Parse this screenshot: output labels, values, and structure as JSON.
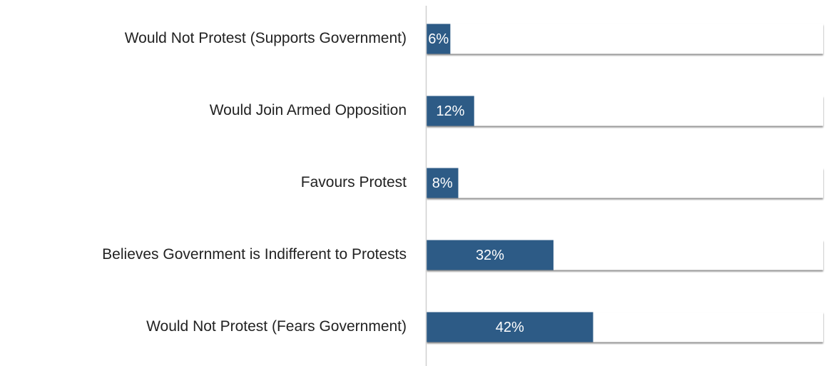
{
  "chart_data": {
    "type": "hbar",
    "categories": [
      "Would Not Protest (Supports Government)",
      "Would Join Armed Opposition",
      "Favours Protest",
      "Believes Government is Indifferent to Protests",
      "Would Not Protest (Fears Government)"
    ],
    "values": [
      6,
      12,
      8,
      32,
      42
    ],
    "value_labels": [
      "6%",
      "12%",
      "8%",
      "32%",
      "42%"
    ],
    "color": "#2d5b86",
    "xlim": [
      0,
      100
    ]
  }
}
